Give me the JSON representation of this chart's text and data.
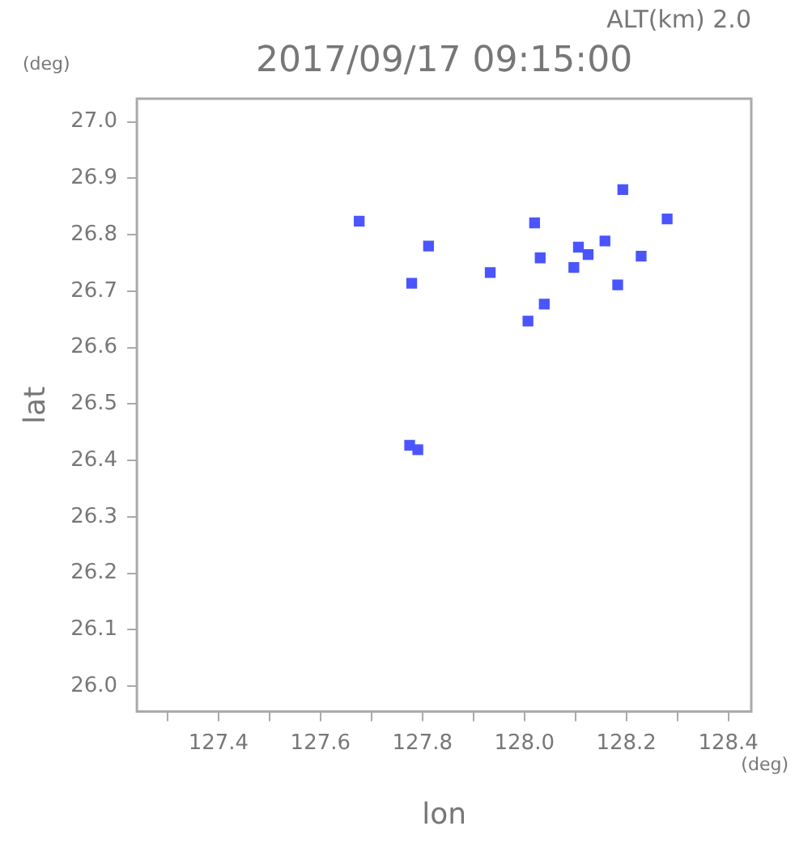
{
  "chart_data": {
    "type": "scatter",
    "title": "2017/09/17 09:15:00",
    "subtitle": "ALT(km) 2.0",
    "xlabel": "lon",
    "ylabel": "lat",
    "annotations": [
      "(deg)",
      "(deg)"
    ],
    "series": [
      {
        "color": "#4a55ff",
        "x": [
          127.676,
          127.812,
          127.779,
          127.933,
          128.02,
          128.031,
          128.039,
          128.007,
          128.193,
          128.28,
          128.158,
          128.106,
          128.125,
          128.229,
          128.097,
          128.183,
          127.775,
          127.791
        ],
        "values": [
          26.824,
          26.78,
          26.714,
          26.733,
          26.821,
          26.759,
          26.677,
          26.647,
          26.88,
          26.828,
          26.789,
          26.778,
          26.765,
          26.762,
          26.742,
          26.711,
          26.427,
          26.419
        ]
      }
    ],
    "xlim": [
      127.24,
      128.445
    ],
    "ylim": [
      25.955,
      27.041
    ],
    "xticks": [
      {
        "value": 127.3,
        "label": null
      },
      127.4,
      {
        "value": 127.5,
        "label": null
      },
      127.6,
      {
        "value": 127.7,
        "label": null
      },
      127.8,
      {
        "value": 127.9,
        "label": null
      },
      {
        "value": 128.0,
        "label": "128.0"
      },
      {
        "value": 128.1,
        "label": null
      },
      128.2,
      {
        "value": 128.3,
        "label": null
      },
      128.4
    ],
    "yticks": [
      {
        "value": 26.0,
        "label": "26.0"
      },
      26.1,
      26.2,
      26.3,
      26.4,
      26.5,
      26.6,
      26.7,
      26.8,
      26.9,
      {
        "value": 27.0,
        "label": "27.0"
      }
    ],
    "grid": false,
    "legend": false,
    "marker": "square"
  }
}
